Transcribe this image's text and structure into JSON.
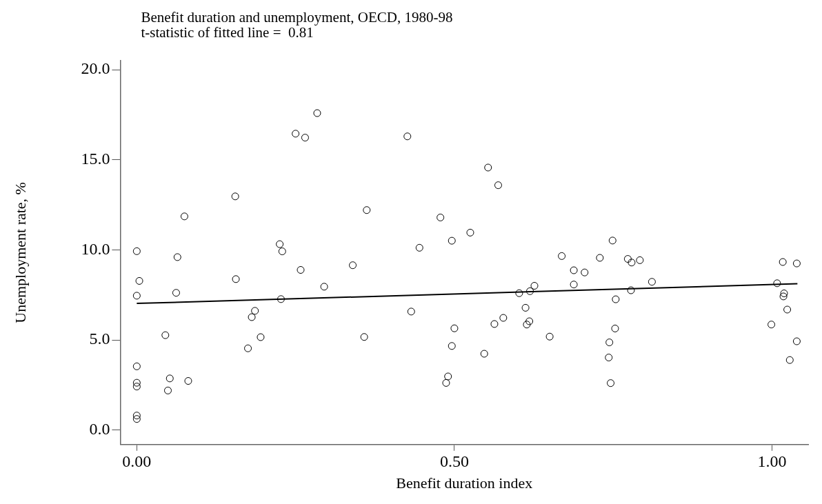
{
  "chart_data": {
    "type": "scatter",
    "title": "Benefit duration and unemployment, OECD, 1980-98",
    "subtitle": "t-statistic of fitted line =  0.81",
    "xlabel": "Benefit duration index",
    "ylabel": "Unemployment rate, %",
    "xlim": [
      -0.026,
      1.057
    ],
    "ylim": [
      -0.8,
      20.5
    ],
    "xticks": [
      {
        "value": 0,
        "label": "0.00"
      },
      {
        "value": 0.5,
        "label": "0.50"
      },
      {
        "value": 1,
        "label": "1.00"
      }
    ],
    "yticks": [
      {
        "value": 0,
        "label": "0.0"
      },
      {
        "value": 5,
        "label": "5.0"
      },
      {
        "value": 10,
        "label": "10.0"
      },
      {
        "value": 15,
        "label": "15.0"
      },
      {
        "value": 20,
        "label": "20.0"
      }
    ],
    "grid": false,
    "legend": false,
    "marker": "circle",
    "series": [
      {
        "type": "scatter",
        "color": "#000000",
        "x": [
          0.284,
          0.25,
          0.265,
          0.155,
          0.075,
          0,
          0.064,
          0.225,
          0.229,
          0.004,
          0.156,
          0.258,
          0,
          0.062,
          0.295,
          0.227,
          0.186,
          0.181,
          0.045,
          0.195,
          0.175,
          0,
          0.052,
          0.081,
          0,
          0,
          0.049,
          0,
          0,
          0.426,
          0.553,
          0.569,
          0.362,
          0.478,
          0.525,
          0.496,
          0.445,
          0.34,
          0.669,
          0.626,
          0.619,
          0.602,
          0.612,
          0.432,
          0.577,
          0.563,
          0.618,
          0.614,
          0.5,
          0.358,
          0.65,
          0.496,
          0.547,
          0.49,
          0.487,
          0.749,
          0.729,
          0.688,
          0.705,
          0.688,
          0.773,
          0.779,
          0.792,
          0.811,
          0.778,
          0.754,
          0.753,
          0.744,
          0.743,
          0.746,
          1.017,
          1.039,
          1.008,
          1.019,
          1.018,
          1.024,
          0.999,
          1.039,
          1.028
        ],
        "values": [
          17.59,
          16.45,
          16.23,
          12.97,
          11.86,
          9.93,
          9.6,
          10.32,
          9.92,
          8.28,
          8.38,
          8.89,
          7.46,
          7.62,
          7.96,
          7.27,
          6.62,
          6.27,
          5.27,
          5.16,
          4.54,
          3.54,
          2.87,
          2.73,
          2.63,
          2.42,
          2.2,
          0.81,
          0.62,
          16.3,
          14.57,
          13.59,
          12.21,
          11.8,
          10.96,
          10.51,
          10.12,
          9.15,
          9.66,
          8.01,
          7.71,
          7.6,
          6.79,
          6.58,
          6.23,
          5.89,
          6.04,
          5.86,
          5.65,
          5.17,
          5.19,
          4.67,
          4.24,
          2.98,
          2.62,
          10.52,
          9.56,
          8.87,
          8.75,
          8.08,
          9.5,
          9.3,
          9.43,
          8.23,
          7.76,
          7.26,
          5.64,
          4.87,
          4.03,
          2.61,
          9.33,
          9.25,
          8.15,
          7.59,
          7.42,
          6.69,
          5.86,
          4.93,
          3.89
        ]
      },
      {
        "type": "line",
        "color": "#000000",
        "x": [
          0,
          1.04
        ],
        "values": [
          7.03,
          8.12
        ],
        "marker": "none",
        "line_style": "solid"
      }
    ]
  }
}
